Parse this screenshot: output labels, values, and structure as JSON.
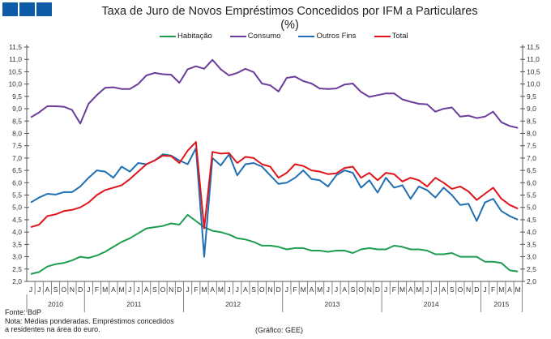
{
  "logo": {
    "name": "logo-three-squares",
    "color": "#0d5aa7"
  },
  "chart_data": {
    "type": "line",
    "title": "Taxa de Juro de Novos Empréstimos Concedidos por IFM a Particulares",
    "subtitle": "(%)",
    "ylim": [
      2.0,
      11.5
    ],
    "yticks": [
      "2,0",
      "2,5",
      "3,0",
      "3,5",
      "4,0",
      "4,5",
      "5,0",
      "5,5",
      "6,0",
      "6,5",
      "7,0",
      "7,5",
      "8,0",
      "8,5",
      "9,0",
      "9,5",
      "10,0",
      "10,5",
      "11,0",
      "11,5"
    ],
    "grid": false,
    "legend": "top",
    "month_labels": [
      "J",
      "J",
      "A",
      "S",
      "O",
      "N",
      "D",
      "J",
      "F",
      "M",
      "A",
      "M",
      "J",
      "J",
      "A",
      "S",
      "O",
      "N",
      "D",
      "J",
      "F",
      "M",
      "A",
      "M",
      "J",
      "J",
      "A",
      "S",
      "O",
      "N",
      "D",
      "J",
      "F",
      "M",
      "A",
      "M",
      "J",
      "J",
      "A",
      "S",
      "O",
      "N",
      "D",
      "J",
      "F",
      "M",
      "A",
      "M",
      "J",
      "J",
      "A",
      "S",
      "O",
      "N",
      "D",
      "J",
      "F",
      "M",
      "A",
      "M"
    ],
    "years": [
      {
        "label": "2010",
        "months": 7
      },
      {
        "label": "2011",
        "months": 12
      },
      {
        "label": "2012",
        "months": 12
      },
      {
        "label": "2013",
        "months": 12
      },
      {
        "label": "2014",
        "months": 12
      },
      {
        "label": "2015",
        "months": 5
      }
    ],
    "series": [
      {
        "name": "Habitação",
        "color": "#1e9c4f",
        "values": [
          2.3,
          2.38,
          2.6,
          2.7,
          2.75,
          2.85,
          3.0,
          2.95,
          3.05,
          3.2,
          3.4,
          3.6,
          3.75,
          3.95,
          4.15,
          4.2,
          4.25,
          4.35,
          4.3,
          4.7,
          4.45,
          4.2,
          4.05,
          4.0,
          3.9,
          3.75,
          3.7,
          3.6,
          3.45,
          3.45,
          3.4,
          3.3,
          3.35,
          3.35,
          3.25,
          3.25,
          3.2,
          3.25,
          3.25,
          3.15,
          3.3,
          3.35,
          3.3,
          3.3,
          3.45,
          3.4,
          3.3,
          3.3,
          3.25,
          3.1,
          3.1,
          3.15,
          3.0,
          3.0,
          3.0,
          2.8,
          2.8,
          2.75,
          2.45,
          2.4
        ]
      },
      {
        "name": "Consumo",
        "color": "#6a3d9a",
        "values": [
          8.65,
          8.85,
          9.1,
          9.1,
          9.08,
          8.95,
          8.4,
          9.2,
          9.55,
          9.85,
          9.87,
          9.8,
          9.8,
          10.0,
          10.35,
          10.45,
          10.4,
          10.38,
          10.05,
          10.6,
          10.72,
          10.62,
          10.98,
          10.6,
          10.35,
          10.45,
          10.62,
          10.48,
          10.02,
          9.95,
          9.7,
          10.25,
          10.3,
          10.12,
          10.02,
          9.82,
          9.8,
          9.82,
          9.98,
          10.02,
          9.68,
          9.48,
          9.55,
          9.62,
          9.62,
          9.38,
          9.28,
          9.2,
          9.18,
          8.88,
          9.0,
          9.05,
          8.68,
          8.72,
          8.62,
          8.68,
          8.88,
          8.45,
          8.3,
          8.22
        ]
      },
      {
        "name": "Outros Fins",
        "color": "#1f6fb2",
        "values": [
          5.2,
          5.4,
          5.55,
          5.52,
          5.62,
          5.62,
          5.85,
          6.2,
          6.5,
          6.45,
          6.2,
          6.65,
          6.45,
          6.8,
          6.75,
          6.9,
          7.15,
          7.1,
          6.9,
          6.75,
          7.4,
          3.0,
          7.0,
          6.7,
          7.15,
          6.3,
          6.75,
          6.8,
          6.65,
          6.3,
          5.95,
          6.0,
          6.2,
          6.5,
          6.15,
          6.1,
          5.85,
          6.3,
          6.5,
          6.4,
          5.8,
          6.1,
          5.6,
          6.2,
          5.8,
          5.9,
          5.35,
          5.85,
          5.7,
          5.4,
          5.8,
          5.5,
          5.1,
          5.15,
          4.45,
          5.2,
          5.35,
          4.85,
          4.65,
          4.5
        ]
      },
      {
        "name": "Total",
        "color": "#e0151b",
        "values": [
          4.2,
          4.3,
          4.65,
          4.72,
          4.85,
          4.9,
          5.0,
          5.2,
          5.5,
          5.7,
          5.8,
          5.9,
          6.15,
          6.45,
          6.75,
          6.9,
          7.1,
          7.08,
          6.8,
          7.3,
          7.65,
          4.15,
          7.25,
          7.18,
          7.2,
          6.8,
          7.05,
          7.0,
          6.75,
          6.65,
          6.2,
          6.4,
          6.75,
          6.68,
          6.5,
          6.45,
          6.35,
          6.38,
          6.6,
          6.65,
          6.2,
          6.4,
          6.1,
          6.4,
          6.35,
          6.05,
          6.2,
          6.1,
          5.85,
          6.2,
          6.0,
          5.75,
          5.85,
          5.65,
          5.3,
          5.55,
          5.8,
          5.35,
          5.1,
          4.95
        ]
      }
    ]
  },
  "footer": {
    "source": "Fonte: BdP",
    "note_line1": "Nota: Médias ponderadas.  Empréstimos  concedidos",
    "note_line2": "a residentes na área do euro.",
    "credit": "(Gráfico:  GEE)"
  }
}
